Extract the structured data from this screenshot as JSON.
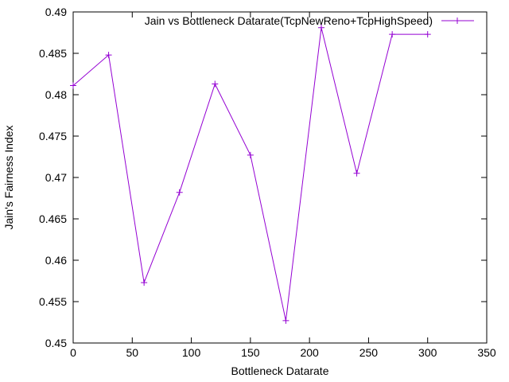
{
  "chart_data": {
    "type": "line",
    "title": "",
    "xlabel": "Bottleneck Datarate",
    "ylabel": "Jain's Fairness Index",
    "xlim": [
      0,
      350
    ],
    "ylim": [
      0.45,
      0.49
    ],
    "x_ticks": [
      "0",
      "50",
      "100",
      "150",
      "200",
      "250",
      "300",
      "350"
    ],
    "y_ticks": [
      "0.45",
      "0.455",
      "0.46",
      "0.465",
      "0.47",
      "0.475",
      "0.48",
      "0.485",
      "0.49"
    ],
    "grid": false,
    "legend_position": "top-right",
    "series": [
      {
        "name": "Jain vs Bottleneck Datarate(TcpNewReno+TcpHighSpeed)",
        "color": "#9400d3",
        "marker": "plus",
        "x": [
          0,
          30,
          60,
          90,
          120,
          150,
          180,
          210,
          240,
          270,
          300
        ],
        "y": [
          0.4811,
          0.4848,
          0.4573,
          0.4682,
          0.4813,
          0.4727,
          0.4527,
          0.4881,
          0.4705,
          0.4873,
          0.4873
        ]
      }
    ]
  }
}
